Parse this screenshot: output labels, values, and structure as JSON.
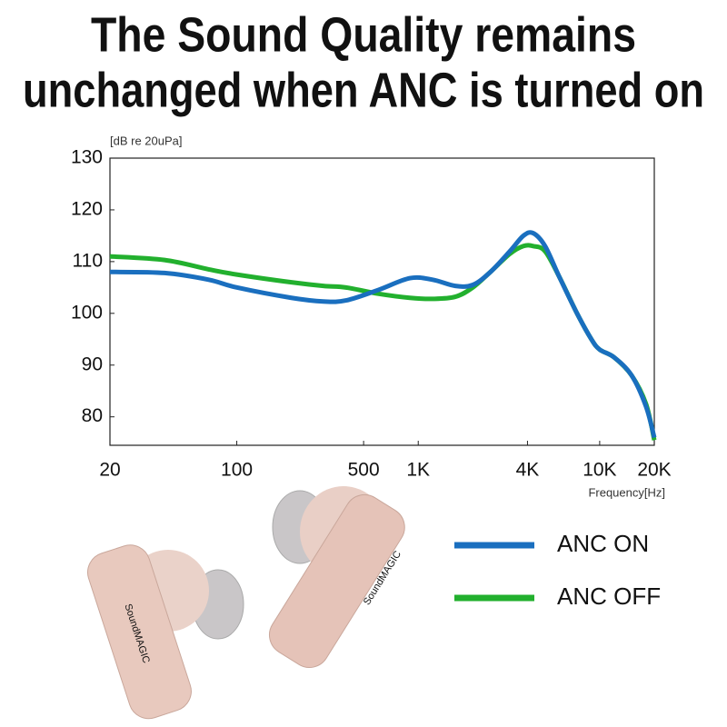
{
  "chart_data": {
    "type": "line",
    "title": [
      "The Sound Quality remains",
      "unchanged when ANC is turned on"
    ],
    "y_label": "[dB re 20uPa]",
    "x_label": "Frequency[Hz]",
    "x_log": true,
    "x": [
      20,
      40,
      70,
      100,
      200,
      300,
      400,
      600,
      900,
      1200,
      1600,
      2000,
      2500,
      3200,
      3800,
      4300,
      5000,
      6000,
      7500,
      9000,
      10000,
      12000,
      15000,
      18000,
      20000
    ],
    "series": [
      {
        "name": "ANC ON",
        "color": "#1a6fbf",
        "values": [
          108,
          107.8,
          106.5,
          105,
          103,
          102.3,
          102.5,
          104.5,
          106.8,
          106.5,
          105.3,
          105.5,
          108,
          112,
          115,
          115.5,
          113,
          107,
          100,
          95,
          93,
          91.5,
          88,
          82,
          76
        ]
      },
      {
        "name": "ANC OFF",
        "color": "#22b02e",
        "values": [
          111,
          110.3,
          108.5,
          107.5,
          106,
          105.3,
          105,
          103.8,
          103,
          102.8,
          103.2,
          105,
          108,
          111.5,
          113,
          113,
          112,
          107,
          100,
          95,
          93,
          91.5,
          88,
          82.5,
          75.5
        ]
      }
    ],
    "xlim": [
      20,
      20000
    ],
    "xticks": [
      20,
      100,
      500,
      {
        "value": 1000,
        "label": "1K"
      },
      {
        "value": 4000,
        "label": "4K"
      },
      {
        "value": 10000,
        "label": "10K"
      },
      {
        "value": 20000,
        "label": "20K"
      }
    ],
    "ylim": [
      74.5,
      130
    ],
    "yticks": [
      80,
      90,
      100,
      110,
      120,
      130
    ],
    "brand": "SoundMAGIC"
  }
}
